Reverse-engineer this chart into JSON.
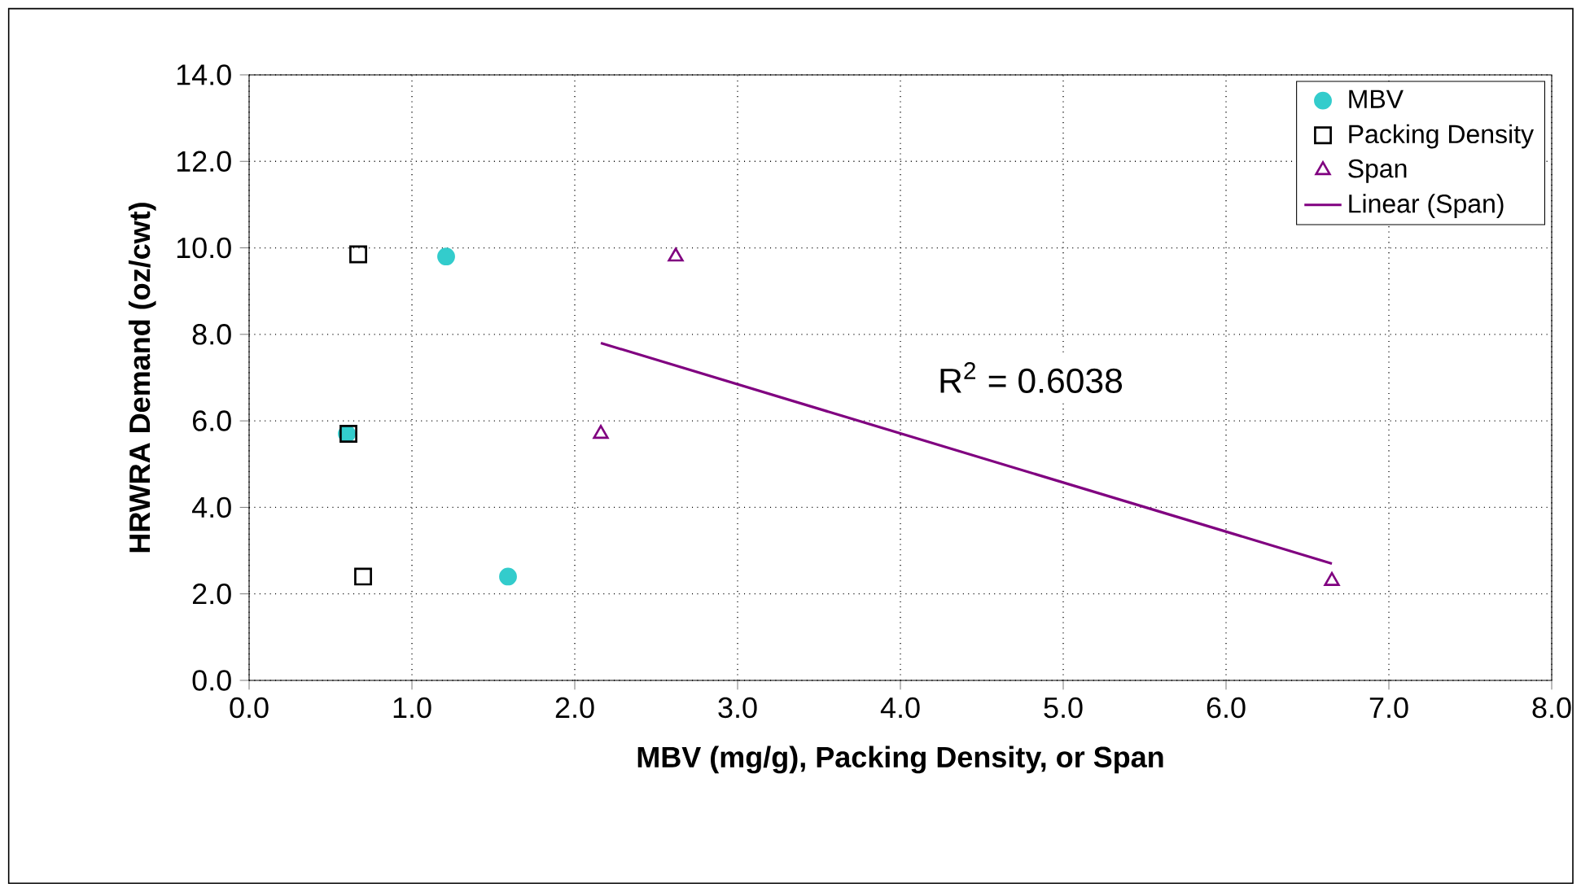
{
  "chart_data": {
    "type": "scatter",
    "xlabel": "MBV (mg/g), Packing Density, or Span",
    "ylabel": "HRWRA Demand (oz/cwt)",
    "xlim": [
      0,
      8
    ],
    "ylim": [
      0,
      14
    ],
    "xticks": [
      {
        "value": 0,
        "label": "0.0"
      },
      {
        "value": 1,
        "label": "1.0"
      },
      {
        "value": 2,
        "label": "2.0"
      },
      {
        "value": 3,
        "label": "3.0"
      },
      {
        "value": 4,
        "label": "4.0"
      },
      {
        "value": 5,
        "label": "5.0"
      },
      {
        "value": 6,
        "label": "6.0"
      },
      {
        "value": 7,
        "label": "7.0"
      },
      {
        "value": 8,
        "label": "8.0"
      }
    ],
    "yticks": [
      {
        "value": 0,
        "label": "0.0"
      },
      {
        "value": 2,
        "label": "2.0"
      },
      {
        "value": 4,
        "label": "4.0"
      },
      {
        "value": 6,
        "label": "6.0"
      },
      {
        "value": 8,
        "label": "8.0"
      },
      {
        "value": 10,
        "label": "10.0"
      },
      {
        "value": 12,
        "label": "12.0"
      },
      {
        "value": 14,
        "label": "14.0"
      }
    ],
    "grid": true,
    "legend": "top right",
    "annotations": [
      "R$^{2}$ = 0.6038"
    ],
    "series": [
      {
        "name": "MBV",
        "color": "#33cccc",
        "marker": "circle",
        "x": [
          1.21,
          0.6,
          1.59
        ],
        "values": [
          9.8,
          5.7,
          2.4
        ]
      },
      {
        "name": "Packing Density",
        "color": "#000000",
        "marker": "square",
        "x": [
          0.67,
          0.61,
          0.7
        ],
        "values": [
          9.85,
          5.7,
          2.4
        ]
      },
      {
        "name": "Span",
        "color": "#800080",
        "marker": "triangle",
        "x": [
          2.62,
          2.16,
          6.65
        ],
        "values": [
          9.8,
          5.7,
          2.3
        ]
      },
      {
        "name": "Linear (Span)",
        "type": "line",
        "color": "#800080",
        "marker": "none",
        "line_style": "solid",
        "x": [
          2.16,
          6.65
        ],
        "values": [
          7.8,
          2.7
        ]
      }
    ]
  }
}
